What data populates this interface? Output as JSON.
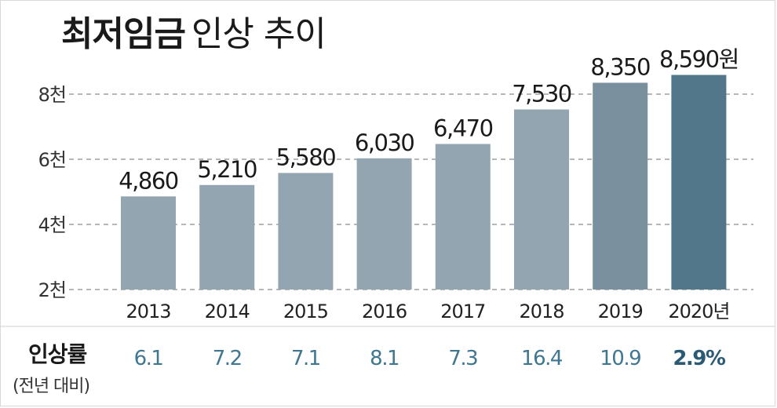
{
  "title": {
    "bold": "최저임금",
    "regular": "인상 추이"
  },
  "colors": {
    "bar_light": "#93a5b1",
    "bar_2019": "#7b909e",
    "bar_2020": "#52768a",
    "rate_text": "#3f7690",
    "rate_last": "#2b5a75",
    "grid": "#8c8c8c",
    "text": "#1a1a1a"
  },
  "chart_data": {
    "type": "bar",
    "title": "최저임금 인상 추이",
    "categories": [
      "2013",
      "2014",
      "2015",
      "2016",
      "2017",
      "2018",
      "2019",
      "2020년"
    ],
    "values": [
      4860,
      5210,
      5580,
      6030,
      6470,
      7530,
      8350,
      8590
    ],
    "value_labels": [
      "4,860",
      "5,210",
      "5,580",
      "6,030",
      "6,470",
      "7,530",
      "8,350",
      "8,590원"
    ],
    "yticks": [
      2000,
      4000,
      6000,
      8000
    ],
    "ytick_labels": [
      "2천",
      "4천",
      "6천",
      "8천"
    ],
    "ylim": [
      2000,
      8500
    ],
    "grid": true,
    "rate_row": {
      "label": "인상률",
      "sublabel": "(전년 대비)",
      "values": [
        "6.1",
        "7.2",
        "7.1",
        "8.1",
        "7.3",
        "16.4",
        "10.9",
        "2.9%"
      ]
    }
  }
}
